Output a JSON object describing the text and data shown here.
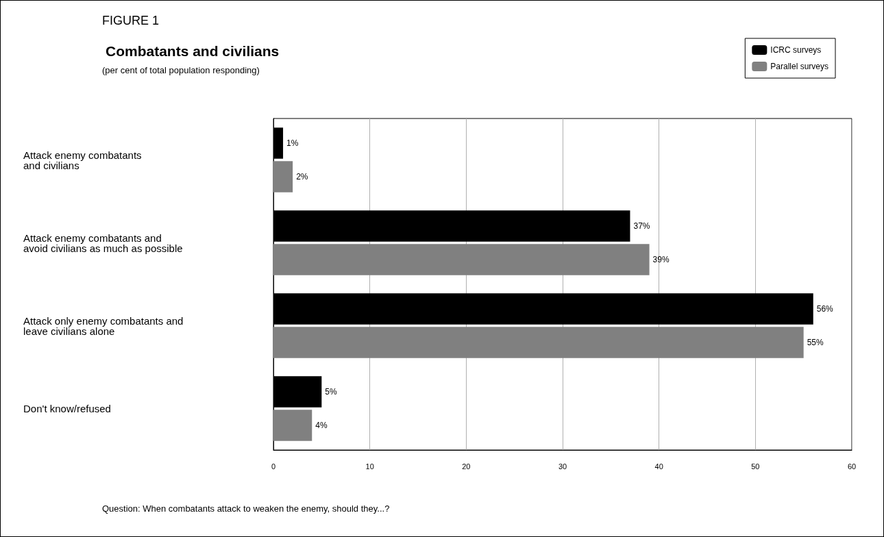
{
  "chart_data": {
    "type": "bar",
    "orientation": "horizontal",
    "title": "Combatants and civilians",
    "annotations": [
      "FIGURE 1",
      "(per cent of total population responding)",
      "Question: When combatants attack to weaken the enemy, should they...?"
    ],
    "categories": [
      "Attack enemy combatants\nand civilians",
      "Attack enemy combatants and\navoid civilians as much as possible",
      "Attack only enemy combatants and\nleave civilians alone",
      "Don't know/refused"
    ],
    "series": [
      {
        "name": "ICRC surveys",
        "color": "#000000",
        "values": [
          1,
          37,
          56,
          5
        ],
        "value_labels": [
          "1%",
          "37%",
          "56%",
          "5%"
        ]
      },
      {
        "name": "Parallel surveys",
        "color": "#808080",
        "values": [
          2,
          39,
          55,
          4
        ],
        "value_labels": [
          "2%",
          "39%",
          "55%",
          "4%"
        ]
      }
    ],
    "xlim": [
      0,
      60
    ],
    "xticks": [
      0,
      10,
      20,
      30,
      40,
      50,
      60
    ],
    "grid": "x",
    "legend": "top right"
  }
}
